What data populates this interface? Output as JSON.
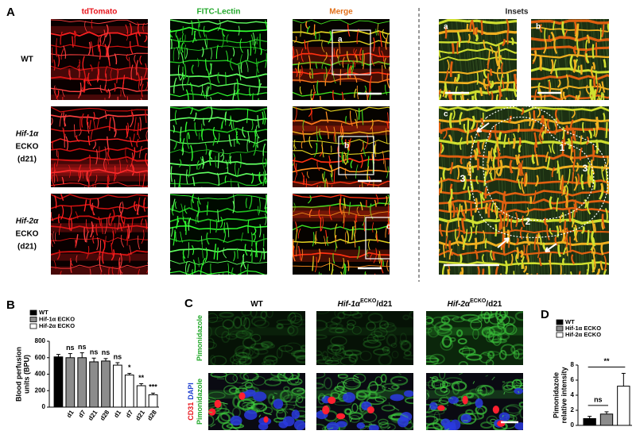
{
  "panel_a": {
    "label": "A",
    "columns": [
      {
        "text": "tdTomato",
        "color": "#e8141c"
      },
      {
        "text": "FITC-Lectin",
        "color": "#22a82a"
      },
      {
        "text": "Merge",
        "color": "#e2701a"
      },
      {
        "text": "Insets",
        "color": "#222222"
      }
    ],
    "rows": [
      [
        "WT"
      ],
      [
        "Hif-1α",
        "ECKO",
        "(d21)"
      ],
      [
        "Hif-2α",
        "ECKO",
        "(d21)"
      ]
    ],
    "inset_boxes": [
      "a",
      "b",
      "c"
    ],
    "inset_c_numbers": [
      "1",
      "3",
      "3",
      "2"
    ]
  },
  "panel_c": {
    "label": "C",
    "columns": [
      {
        "gene": "WT"
      },
      {
        "gene": "Hif-1α",
        "sup": "ECKO",
        "suffix": "/d21"
      },
      {
        "gene": "Hif-2α",
        "sup": "ECKO",
        "suffix": "/d21"
      }
    ],
    "rows": [
      [
        [
          {
            "text": "Pimonidazole",
            "color": "#22a82a"
          }
        ]
      ],
      [
        [
          {
            "text": "CD31",
            "color": "#e8141c"
          },
          {
            "text": "DAPI",
            "color": "#2040d0"
          }
        ],
        [
          {
            "text": "Pimonidazole",
            "color": "#22a82a"
          }
        ]
      ]
    ]
  },
  "chart_data": [
    {
      "type": "bar",
      "label": "B",
      "ylabel": [
        "Blood perfusion",
        "units (BPU)"
      ],
      "categories": [
        null,
        "d1",
        "d7",
        "d21",
        "d28",
        "d1",
        "d7",
        "d21",
        "d28"
      ],
      "series": [
        {
          "name": "WT",
          "color": "#000000",
          "values": [
            610,
            null,
            null,
            null,
            null,
            null,
            null,
            null,
            null
          ],
          "errors": [
            30,
            null,
            null,
            null,
            null,
            null,
            null,
            null,
            null
          ]
        },
        {
          "name": "Hif-1α ECKO",
          "color": "#8c8c8c",
          "values": [
            null,
            600,
            600,
            550,
            560,
            null,
            null,
            null,
            null
          ],
          "errors": [
            null,
            50,
            60,
            45,
            30,
            null,
            null,
            null,
            null
          ]
        },
        {
          "name": "Hif-2α ECKO",
          "color": "#ffffff",
          "values": [
            null,
            null,
            null,
            null,
            null,
            510,
            390,
            260,
            150
          ],
          "errors": [
            null,
            null,
            null,
            null,
            null,
            30,
            20,
            25,
            20
          ]
        }
      ],
      "significance": [
        null,
        "ns",
        "ns",
        "ns",
        "ns",
        "ns",
        "*",
        "**",
        "***"
      ],
      "ylim": [
        0,
        800
      ],
      "yticks": [
        0,
        200,
        400,
        600,
        800
      ]
    },
    {
      "type": "bar",
      "label": "D",
      "ylabel": [
        "Pimonidazole",
        "relative intensity"
      ],
      "categories": [
        null,
        null,
        null
      ],
      "series": [
        {
          "name": "WT",
          "color": "#000000",
          "values": [
            0.9,
            null,
            null
          ],
          "errors": [
            0.3,
            null,
            null
          ]
        },
        {
          "name": "Hif-1α ECKO",
          "color": "#8c8c8c",
          "values": [
            null,
            1.5,
            null
          ],
          "errors": [
            null,
            0.3,
            null
          ]
        },
        {
          "name": "Hif-2α ECKO",
          "color": "#ffffff",
          "values": [
            null,
            null,
            5.2
          ],
          "errors": [
            null,
            null,
            1.7
          ]
        }
      ],
      "comparisons": [
        "ns",
        "**"
      ],
      "ylim": [
        0,
        8
      ],
      "yticks": [
        0,
        2,
        4,
        6,
        8
      ]
    }
  ]
}
